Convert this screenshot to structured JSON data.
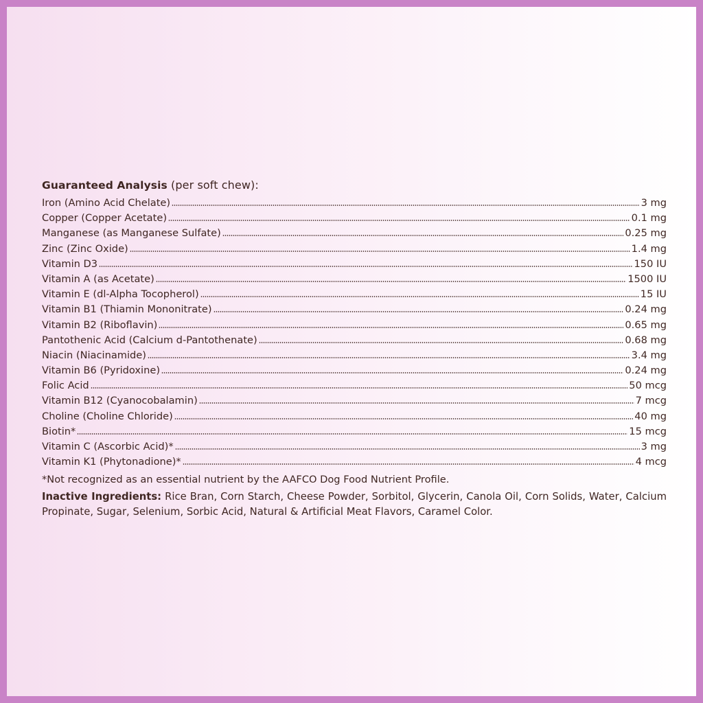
{
  "heading": {
    "title": "Guaranteed Analysis",
    "subtitle": "(per soft chew):"
  },
  "nutrients": [
    {
      "name": "Iron (Amino Acid Chelate)",
      "amount": "3 mg"
    },
    {
      "name": "Copper (Copper Acetate)",
      "amount": "0.1 mg"
    },
    {
      "name": "Manganese (as Manganese Sulfate)",
      "amount": "0.25 mg"
    },
    {
      "name": "Zinc (Zinc Oxide)",
      "amount": "1.4 mg"
    },
    {
      "name": "Vitamin D3",
      "amount": "150 IU"
    },
    {
      "name": "Vitamin A (as Acetate)",
      "amount": "1500 IU"
    },
    {
      "name": "Vitamin E (dl-Alpha Tocopherol)",
      "amount": "15 IU"
    },
    {
      "name": "Vitamin B1 (Thiamin Mononitrate)",
      "amount": "0.24 mg"
    },
    {
      "name": "Vitamin B2 (Riboflavin)",
      "amount": "0.65 mg"
    },
    {
      "name": "Pantothenic Acid (Calcium d-Pantothenate)",
      "amount": "0.68 mg"
    },
    {
      "name": "Niacin (Niacinamide)",
      "amount": "3.4 mg"
    },
    {
      "name": "Vitamin B6 (Pyridoxine)",
      "amount": "0.24 mg"
    },
    {
      "name": "Folic Acid",
      "amount": "50 mcg"
    },
    {
      "name": "Vitamin B12 (Cyanocobalamin)",
      "amount": "7 mcg"
    },
    {
      "name": "Choline (Choline Chloride)",
      "amount": "40 mg"
    },
    {
      "name": "Biotin*",
      "amount": "15 mcg"
    },
    {
      "name": "Vitamin C (Ascorbic Acid)*",
      "amount": "3 mg"
    },
    {
      "name": "Vitamin K1 (Phytonadione)*",
      "amount": "4 mcg"
    }
  ],
  "footnote": "*Not recognized as an essential nutrient by the AAFCO Dog Food Nutrient Profile.",
  "inactive": {
    "label": "Inactive Ingredients:",
    "text": "Rice Bran, Corn Starch, Cheese Powder, Sorbitol, Glycerin, Canola Oil, Corn Solids, Water, Calcium Propinate, Sugar, Selenium, Sorbic Acid, Natural & Artificial Meat Flavors, Caramel Color."
  },
  "colors": {
    "border": "#c983c7",
    "text": "#3f2622",
    "background_left": "#f6dff0",
    "background_right": "#ffffff"
  }
}
